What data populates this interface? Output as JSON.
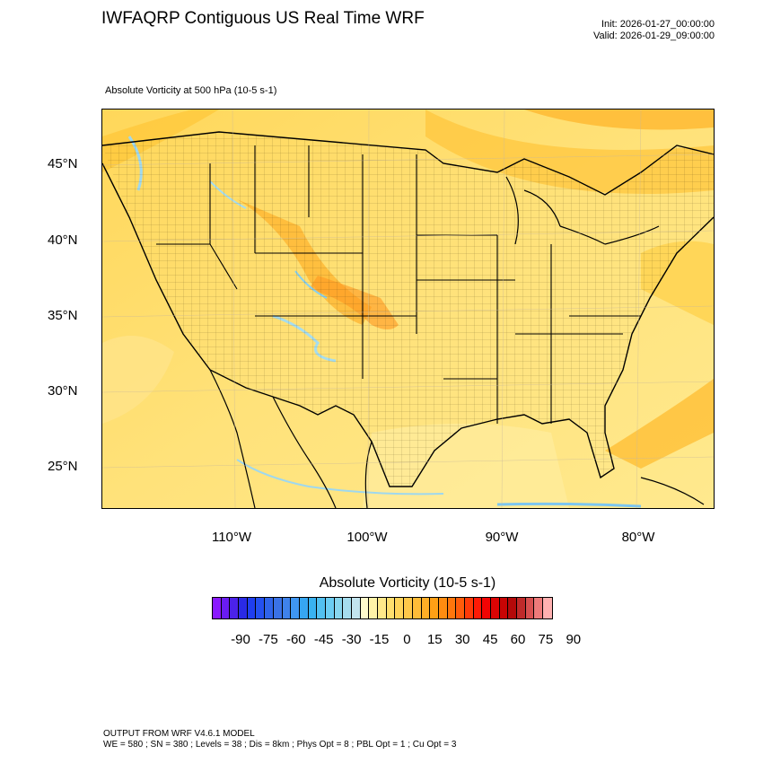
{
  "header": {
    "title": "IWFAQRP Contiguous US Real Time WRF",
    "init": "Init: 2026-01-27_00:00:00",
    "valid": "Valid: 2026-01-29_09:00:00"
  },
  "field_label": "Absolute Vorticity at 500 hPa   (10-5 s-1)",
  "map": {
    "lat_labels": [
      "45°N",
      "40°N",
      "35°N",
      "30°N",
      "25°N"
    ],
    "lon_labels": [
      "110°W",
      "100°W",
      "90°W",
      "80°W"
    ]
  },
  "colorbar": {
    "title": "Absolute Vorticity  (10-5 s-1)",
    "tick_labels": [
      "-90",
      "-75",
      "-60",
      "-45",
      "-30",
      "-15",
      "0",
      "15",
      "30",
      "45",
      "60",
      "75",
      "90"
    ],
    "colors": [
      "#8a1aff",
      "#6a1cf2",
      "#4b22ea",
      "#2a2ae6",
      "#1f3ef0",
      "#2450f0",
      "#2f64ea",
      "#3a72e6",
      "#3f82ea",
      "#3f96f2",
      "#36a6f2",
      "#39b2f0",
      "#52c0f0",
      "#6ccdf2",
      "#88d6ee",
      "#a6ddee",
      "#c2e4ee",
      "#fffbcc",
      "#fff3a8",
      "#ffe98a",
      "#ffdf6e",
      "#ffd45a",
      "#ffc84a",
      "#ffbc38",
      "#ffae26",
      "#ffa016",
      "#ff8c10",
      "#ff760c",
      "#ff5c0a",
      "#ff3a08",
      "#ff1a06",
      "#f20404",
      "#dc0404",
      "#c80404",
      "#b40a0a",
      "#c02a2a",
      "#d85050",
      "#ee7a7a",
      "#ffb0b0"
    ]
  },
  "footer": {
    "line1": "OUTPUT FROM WRF V4.6.1 MODEL",
    "line2": "WE = 580 ; SN = 380 ; Levels = 38 ; Dis = 8km ; Phys Opt = 8 ; PBL Opt = 1 ; Cu Opt = 3"
  }
}
